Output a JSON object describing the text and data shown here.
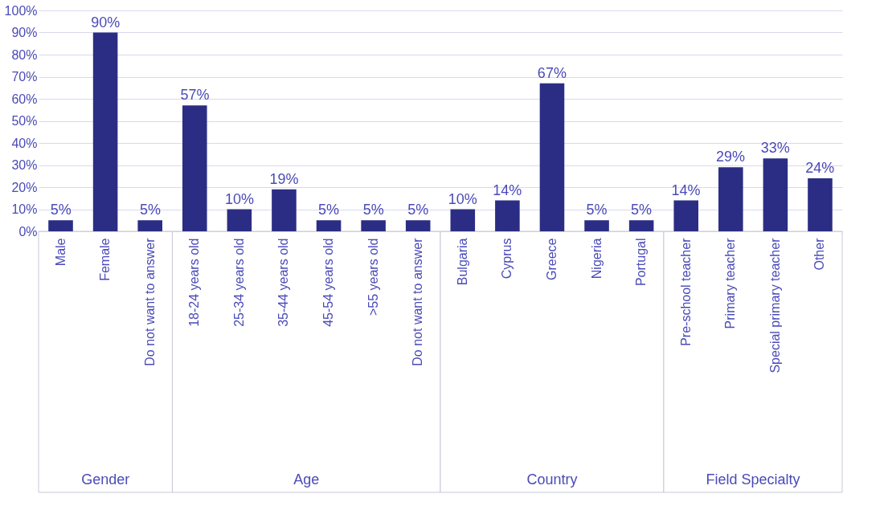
{
  "chart_data": {
    "type": "bar",
    "categories": [
      "Male",
      "Female",
      "Do not want to answer",
      "18-24 years old",
      "25-34 years old",
      "35-44 years old",
      "45-54 years old",
      ">55 years old",
      "Do not want to answer",
      "Bulgaria",
      "Cyprus",
      "Greece",
      "Nigeria",
      "Portugal",
      "Pre-school teacher",
      "Primary teacher",
      "Special primary teacher",
      "Other"
    ],
    "values": [
      5,
      90,
      5,
      57,
      10,
      19,
      5,
      5,
      5,
      10,
      14,
      67,
      5,
      5,
      14,
      29,
      33,
      24
    ],
    "value_labels": [
      "5%",
      "90%",
      "5%",
      "57%",
      "10%",
      "19%",
      "5%",
      "5%",
      "5%",
      "10%",
      "14%",
      "67%",
      "5%",
      "5%",
      "14%",
      "29%",
      "33%",
      "24%"
    ],
    "color": "#2b2d84",
    "ylim": [
      0,
      100
    ],
    "yticks": [
      {
        "value": 0,
        "label": "0%"
      },
      {
        "value": 10,
        "label": "10%"
      },
      {
        "value": 20,
        "label": "20%"
      },
      {
        "value": 30,
        "label": "30%"
      },
      {
        "value": 40,
        "label": "40%"
      },
      {
        "value": 50,
        "label": "50%"
      },
      {
        "value": 60,
        "label": "60%"
      },
      {
        "value": 70,
        "label": "70%"
      },
      {
        "value": 80,
        "label": "80%"
      },
      {
        "value": 90,
        "label": "90%"
      },
      {
        "value": 100,
        "label": "100%"
      }
    ],
    "grid": "y",
    "annotations": [
      "Gender",
      "Age",
      "Country",
      "Field Specialty"
    ]
  }
}
